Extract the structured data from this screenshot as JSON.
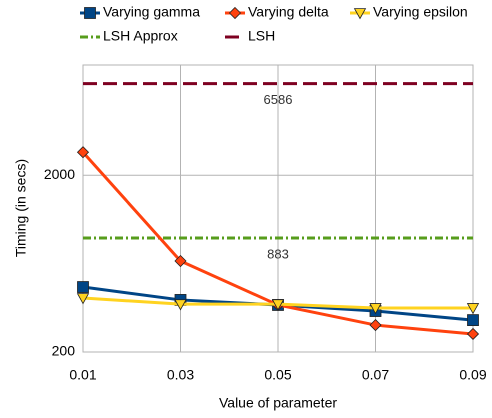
{
  "chart_data": {
    "type": "line",
    "y_label": "Timing (in secs)",
    "x_label": "Value of parameter",
    "x": [
      0.01,
      0.03,
      0.05,
      0.07,
      0.09
    ],
    "xlim": [
      0.01,
      0.09
    ],
    "xticks": [
      0.01,
      0.03,
      0.05,
      0.07,
      0.09
    ],
    "ylim": [
      200,
      8400
    ],
    "yticks": [
      200,
      2000
    ],
    "log_y": true,
    "grid": true,
    "legend": "top",
    "series": [
      {
        "name": "Varying gamma",
        "color": "#004586",
        "marker": "square",
        "values": [
          466,
          394,
          369,
          341,
          303
        ]
      },
      {
        "name": "Varying delta",
        "color": "#ff420e",
        "marker": "diamond",
        "values": [
          2698,
          654,
          369,
          284,
          253
        ]
      },
      {
        "name": "Varying epsilon",
        "color": "#ffd320",
        "marker": "triangle-down",
        "values": [
          404,
          373,
          373,
          355,
          355
        ]
      }
    ],
    "reference_lines": [
      {
        "name": "LSH Approx",
        "value": 883,
        "color": "#579d1c",
        "style": "dashdot"
      },
      {
        "name": "LSH",
        "value": 6586,
        "color": "#7e0021",
        "style": "dashed"
      }
    ]
  }
}
